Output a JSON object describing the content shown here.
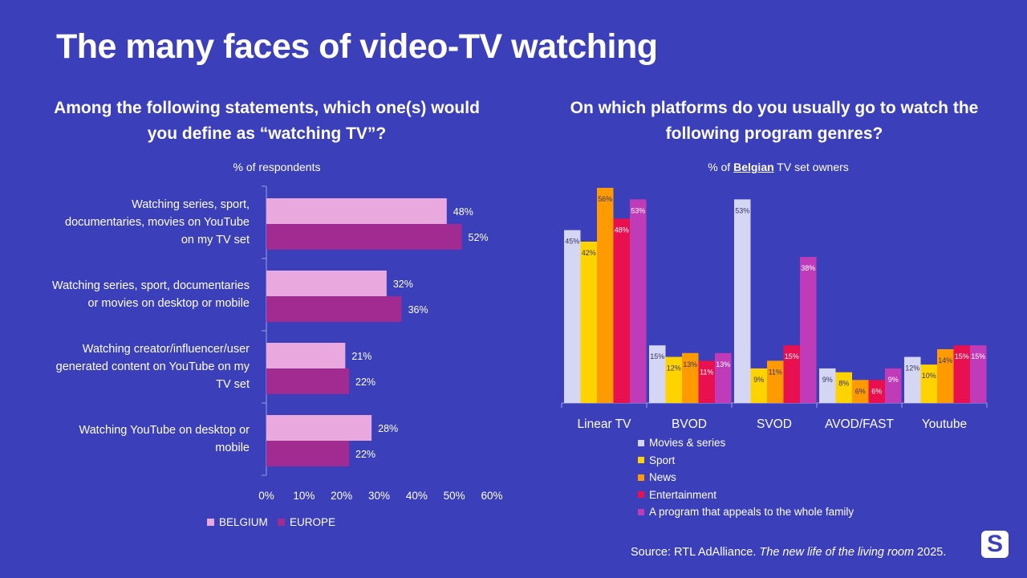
{
  "title": "The many faces of video-TV watching",
  "left": {
    "question": "Among the following statements, which one(s) would you define as “watching TV”?",
    "subtitle": "% of  respondents"
  },
  "right": {
    "question": "On which platforms do you usually go to watch the following program genres?",
    "subtitle_pre": "% of ",
    "subtitle_bold": "Belgian",
    "subtitle_post": " TV set owners"
  },
  "source_pre": "Source: RTL AdAlliance. ",
  "source_italic": "The new life of the living room",
  "source_post": " 2025.",
  "logo_letter": "S",
  "chart_data": [
    {
      "type": "bar",
      "orientation": "horizontal",
      "categories": [
        [
          "Watching series, sport,",
          "documentaries, movies on YouTube",
          "on my TV set"
        ],
        [
          "Watching series, sport, documentaries",
          "or movies on desktop or mobile"
        ],
        [
          "Watching creator/influencer/user",
          "generated content on YouTube on my",
          "TV set"
        ],
        [
          "Watching YouTube on desktop or",
          "mobile"
        ]
      ],
      "series": [
        {
          "name": "BELGIUM",
          "color": "#e9a8de",
          "values": [
            48,
            32,
            21,
            28
          ]
        },
        {
          "name": "EUROPE",
          "color": "#a12b90",
          "values": [
            52,
            36,
            22,
            22
          ]
        }
      ],
      "xlim": [
        0,
        60
      ],
      "xticks": [
        "0%",
        "10%",
        "20%",
        "30%",
        "40%",
        "50%",
        "60%"
      ],
      "value_suffix": "%",
      "legend": "bottom",
      "grid": false
    },
    {
      "type": "bar",
      "orientation": "vertical",
      "categories": [
        "Linear TV",
        "BVOD",
        "SVOD",
        "AVOD/FAST",
        "Youtube"
      ],
      "series": [
        {
          "name": "Movies & series",
          "color": "#d5d6f3",
          "values": [
            45,
            15,
            53,
            9,
            12
          ]
        },
        {
          "name": "Sport",
          "color": "#ffd300",
          "values": [
            42,
            12,
            9,
            8,
            10
          ]
        },
        {
          "name": "News",
          "color": "#ff9a00",
          "values": [
            56,
            13,
            11,
            6,
            14
          ]
        },
        {
          "name": "Entertainment",
          "color": "#e8104f",
          "values": [
            48,
            11,
            15,
            6,
            15
          ]
        },
        {
          "name": "A program that appeals to the whole family",
          "color": "#bf3bb8",
          "values": [
            53,
            13,
            38,
            9,
            15
          ]
        }
      ],
      "ylim": [
        0,
        56
      ],
      "value_suffix": "%",
      "legend": "bottom-left",
      "grid": false
    }
  ]
}
